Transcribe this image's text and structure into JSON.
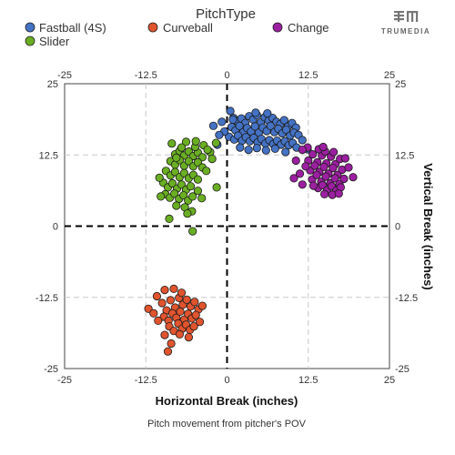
{
  "chart_data": {
    "type": "scatter",
    "legend_title": "PitchType",
    "xlabel": "Horizontal Break (inches)",
    "ylabel": "Vertical Break (inches)",
    "caption": "Pitch movement from pitcher's POV",
    "xlim": [
      -25,
      25
    ],
    "ylim": [
      -25,
      25
    ],
    "ticks": [
      -25,
      -12.5,
      0,
      12.5,
      25
    ],
    "tick_labels": [
      "-25",
      "-12.5",
      "0",
      "12.5",
      "25"
    ],
    "grid": true,
    "legend_position": "top",
    "series": [
      {
        "name": "Fastball (4S)",
        "color": "#4472C4",
        "points": [
          [
            0.5,
            20.2
          ],
          [
            1.0,
            19.0
          ],
          [
            1.6,
            18.4
          ],
          [
            2.2,
            18.9
          ],
          [
            2.8,
            18.1
          ],
          [
            3.4,
            19.3
          ],
          [
            4.0,
            18.7
          ],
          [
            4.6,
            19.5
          ],
          [
            5.2,
            18.2
          ],
          [
            5.8,
            19.1
          ],
          [
            6.4,
            18.5
          ],
          [
            7.0,
            19.0
          ],
          [
            7.6,
            18.3
          ],
          [
            8.2,
            17.9
          ],
          [
            8.8,
            18.6
          ],
          [
            9.4,
            17.5
          ],
          [
            10.0,
            18.1
          ],
          [
            10.6,
            17.3
          ],
          [
            6.2,
            19.8
          ],
          [
            4.4,
            19.9
          ],
          [
            0.7,
            17.4
          ],
          [
            1.3,
            16.8
          ],
          [
            1.9,
            17.6
          ],
          [
            2.5,
            16.5
          ],
          [
            3.1,
            17.2
          ],
          [
            3.7,
            16.6
          ],
          [
            4.3,
            17.5
          ],
          [
            4.9,
            16.4
          ],
          [
            5.5,
            17.3
          ],
          [
            6.1,
            16.7
          ],
          [
            6.7,
            17.6
          ],
          [
            7.3,
            16.5
          ],
          [
            7.9,
            17.1
          ],
          [
            8.5,
            16.3
          ],
          [
            9.1,
            16.9
          ],
          [
            9.7,
            15.9
          ],
          [
            10.3,
            16.4
          ],
          [
            11.0,
            16.0
          ],
          [
            0.3,
            15.7
          ],
          [
            1.1,
            15.2
          ],
          [
            1.7,
            15.9
          ],
          [
            2.3,
            15.0
          ],
          [
            2.9,
            15.6
          ],
          [
            3.5,
            14.9
          ],
          [
            4.1,
            15.5
          ],
          [
            4.7,
            14.7
          ],
          [
            5.3,
            15.3
          ],
          [
            5.9,
            14.5
          ],
          [
            6.5,
            15.1
          ],
          [
            7.1,
            14.4
          ],
          [
            7.7,
            15.0
          ],
          [
            8.3,
            14.3
          ],
          [
            8.9,
            14.9
          ],
          [
            9.5,
            14.2
          ],
          [
            10.1,
            14.6
          ],
          [
            10.7,
            13.8
          ],
          [
            -0.4,
            16.6
          ],
          [
            -0.8,
            18.3
          ],
          [
            -2.1,
            17.6
          ],
          [
            -1.2,
            16.0
          ],
          [
            2.0,
            13.8
          ],
          [
            3.3,
            13.4
          ],
          [
            4.6,
            13.7
          ],
          [
            6.0,
            13.3
          ],
          [
            7.4,
            13.6
          ],
          [
            9.0,
            13.0
          ],
          [
            0.9,
            18.7
          ],
          [
            11.6,
            15.1
          ],
          [
            12.4,
            13.5
          ],
          [
            -1.5,
            14.3
          ]
        ]
      },
      {
        "name": "Curveball",
        "color": "#E0542E",
        "points": [
          [
            -10.0,
            -13.5
          ],
          [
            -9.3,
            -14.8
          ],
          [
            -8.7,
            -13.0
          ],
          [
            -8.0,
            -14.3
          ],
          [
            -7.4,
            -12.6
          ],
          [
            -6.8,
            -13.8
          ],
          [
            -6.2,
            -12.9
          ],
          [
            -5.6,
            -14.1
          ],
          [
            -5.0,
            -13.3
          ],
          [
            -4.4,
            -14.6
          ],
          [
            -9.7,
            -15.9
          ],
          [
            -9.0,
            -16.6
          ],
          [
            -8.4,
            -15.3
          ],
          [
            -7.8,
            -16.1
          ],
          [
            -7.2,
            -15.0
          ],
          [
            -6.6,
            -16.4
          ],
          [
            -6.0,
            -15.4
          ],
          [
            -5.4,
            -16.2
          ],
          [
            -4.8,
            -15.6
          ],
          [
            -4.2,
            -16.8
          ],
          [
            -8.9,
            -17.6
          ],
          [
            -8.2,
            -18.4
          ],
          [
            -7.5,
            -17.1
          ],
          [
            -6.9,
            -18.0
          ],
          [
            -6.3,
            -17.3
          ],
          [
            -5.7,
            -18.2
          ],
          [
            -5.1,
            -17.6
          ],
          [
            -9.6,
            -19.1
          ],
          [
            -8.6,
            -20.6
          ],
          [
            -9.1,
            -22.0
          ],
          [
            -12.1,
            -14.5
          ],
          [
            -11.3,
            -15.3
          ],
          [
            -10.6,
            -16.6
          ],
          [
            -10.8,
            -12.3
          ],
          [
            -9.6,
            -11.2
          ],
          [
            -8.2,
            -11.0
          ],
          [
            -7.0,
            -11.7
          ],
          [
            -3.8,
            -14.0
          ],
          [
            -5.9,
            -19.5
          ],
          [
            -7.3,
            -19.0
          ]
        ]
      },
      {
        "name": "Change",
        "color": "#9B1FA0",
        "points": [
          [
            12.5,
            11.5
          ],
          [
            13.2,
            12.6
          ],
          [
            13.9,
            11.2
          ],
          [
            14.6,
            12.4
          ],
          [
            15.3,
            11.0
          ],
          [
            16.0,
            12.2
          ],
          [
            16.7,
            10.9
          ],
          [
            17.4,
            11.8
          ],
          [
            12.8,
            9.8
          ],
          [
            13.5,
            10.6
          ],
          [
            14.2,
            9.5
          ],
          [
            14.9,
            10.4
          ],
          [
            15.6,
            9.2
          ],
          [
            16.3,
            10.2
          ],
          [
            17.0,
            9.0
          ],
          [
            17.7,
            9.9
          ],
          [
            13.1,
            8.2
          ],
          [
            13.8,
            9.0
          ],
          [
            14.5,
            7.8
          ],
          [
            15.2,
            8.7
          ],
          [
            15.9,
            7.5
          ],
          [
            16.6,
            8.4
          ],
          [
            17.3,
            7.4
          ],
          [
            18.0,
            8.3
          ],
          [
            14.0,
            6.7
          ],
          [
            14.7,
            7.2
          ],
          [
            15.4,
            6.3
          ],
          [
            16.1,
            7.0
          ],
          [
            16.8,
            6.2
          ],
          [
            17.5,
            6.8
          ],
          [
            15.0,
            5.6
          ],
          [
            16.2,
            5.5
          ],
          [
            17.2,
            5.7
          ],
          [
            14.1,
            13.5
          ],
          [
            15.1,
            13.1
          ],
          [
            12.4,
            13.8
          ],
          [
            11.6,
            13.4
          ],
          [
            10.6,
            11.5
          ],
          [
            10.3,
            8.4
          ],
          [
            11.2,
            9.2
          ],
          [
            11.6,
            7.3
          ],
          [
            19.4,
            8.6
          ],
          [
            18.7,
            10.3
          ],
          [
            18.2,
            11.9
          ],
          [
            12.1,
            10.5
          ],
          [
            14.8,
            13.9
          ],
          [
            16.4,
            13.0
          ],
          [
            13.3,
            7.1
          ]
        ]
      },
      {
        "name": "Slider",
        "color": "#6AAF23",
        "points": [
          [
            -8.0,
            12.6
          ],
          [
            -7.3,
            13.2
          ],
          [
            -6.6,
            12.4
          ],
          [
            -5.9,
            13.1
          ],
          [
            -5.2,
            12.3
          ],
          [
            -4.5,
            12.9
          ],
          [
            -3.8,
            12.1
          ],
          [
            -8.7,
            11.4
          ],
          [
            -8.0,
            10.8
          ],
          [
            -7.3,
            11.6
          ],
          [
            -6.6,
            10.6
          ],
          [
            -5.9,
            11.4
          ],
          [
            -5.2,
            10.5
          ],
          [
            -4.5,
            11.2
          ],
          [
            -3.8,
            10.3
          ],
          [
            -9.4,
            9.7
          ],
          [
            -8.7,
            8.9
          ],
          [
            -8.0,
            9.5
          ],
          [
            -7.3,
            8.6
          ],
          [
            -6.6,
            9.3
          ],
          [
            -5.9,
            8.4
          ],
          [
            -5.2,
            9.0
          ],
          [
            -4.5,
            8.2
          ],
          [
            -9.8,
            7.6
          ],
          [
            -9.1,
            6.8
          ],
          [
            -8.4,
            7.5
          ],
          [
            -7.7,
            6.6
          ],
          [
            -7.0,
            7.3
          ],
          [
            -6.3,
            6.4
          ],
          [
            -5.6,
            7.0
          ],
          [
            -9.5,
            5.6
          ],
          [
            -8.8,
            5.0
          ],
          [
            -8.1,
            5.7
          ],
          [
            -7.4,
            4.8
          ],
          [
            -6.7,
            5.4
          ],
          [
            -6.0,
            4.5
          ],
          [
            -5.3,
            5.2
          ],
          [
            -3.9,
            4.9
          ],
          [
            -7.8,
            3.6
          ],
          [
            -6.5,
            3.3
          ],
          [
            -5.4,
            2.6
          ],
          [
            -8.9,
            1.3
          ],
          [
            -5.3,
            -0.9
          ],
          [
            -4.9,
            13.9
          ],
          [
            -6.3,
            14.8
          ],
          [
            -7.0,
            13.8
          ],
          [
            -8.5,
            14.5
          ],
          [
            -4.8,
            14.9
          ],
          [
            -3.6,
            14.2
          ],
          [
            -2.6,
            13.0
          ],
          [
            -1.7,
            14.6
          ],
          [
            -2.3,
            11.8
          ],
          [
            -3.2,
            9.7
          ],
          [
            -1.6,
            6.8
          ],
          [
            -10.4,
            8.5
          ],
          [
            -10.2,
            5.2
          ],
          [
            -4.5,
            6.2
          ],
          [
            -6.1,
            2.2
          ],
          [
            -3.0,
            13.4
          ],
          [
            -7.8,
            12.0
          ]
        ]
      }
    ]
  },
  "logo": {
    "text": "TRUMEDIA"
  }
}
